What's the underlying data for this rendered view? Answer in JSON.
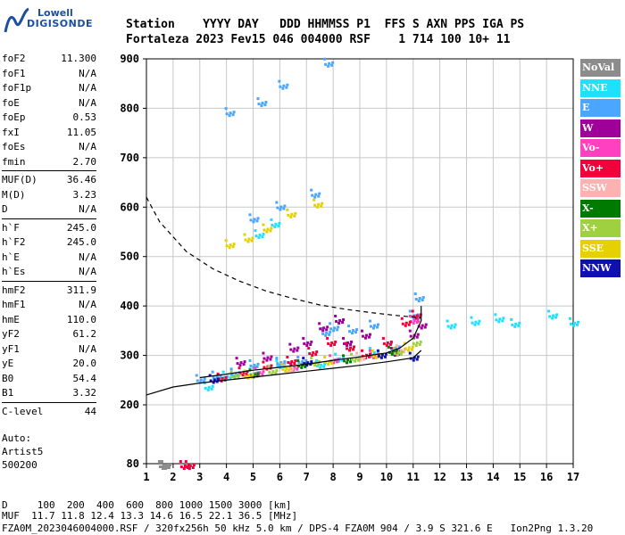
{
  "logo": {
    "line1": "Lowell",
    "line2": "DIGISONDE"
  },
  "header": {
    "row1": "Station    YYYY DAY   DDD HHMMSS P1  FFS S AXN PPS IGA PS",
    "row2": "Fortaleza 2023 Fev15 046 004000 RSF    1 714 100 10+ 11"
  },
  "params": [
    {
      "k": "foF2",
      "v": "11.300"
    },
    {
      "k": "foF1",
      "v": "N/A"
    },
    {
      "k": "foF1p",
      "v": "N/A"
    },
    {
      "k": "foE",
      "v": "N/A"
    },
    {
      "k": "foEp",
      "v": "0.53"
    },
    {
      "k": "fxI",
      "v": "11.05"
    },
    {
      "k": "foEs",
      "v": "N/A"
    },
    {
      "k": "fmin",
      "v": "2.70"
    },
    {
      "sep": true
    },
    {
      "k": "MUF(D)",
      "v": "36.46"
    },
    {
      "k": "M(D)",
      "v": "3.23"
    },
    {
      "k": "D",
      "v": "N/A"
    },
    {
      "sep": true
    },
    {
      "k": "h`F",
      "v": "245.0"
    },
    {
      "k": "h`F2",
      "v": "245.0"
    },
    {
      "k": "h`E",
      "v": "N/A"
    },
    {
      "k": "h`Es",
      "v": "N/A"
    },
    {
      "sep": true
    },
    {
      "k": "hmF2",
      "v": "311.9"
    },
    {
      "k": "hmF1",
      "v": "N/A"
    },
    {
      "k": "hmE",
      "v": "110.0"
    },
    {
      "k": "yF2",
      "v": "61.2"
    },
    {
      "k": "yF1",
      "v": "N/A"
    },
    {
      "k": "yE",
      "v": "20.0"
    },
    {
      "k": "B0",
      "v": "54.4"
    },
    {
      "k": "B1",
      "v": "3.32"
    },
    {
      "sep": true
    },
    {
      "k": "C-level",
      "v": "44"
    }
  ],
  "auto": {
    "l1": "Auto:",
    "l2": "Artist5",
    "l3": "500200"
  },
  "legend": [
    {
      "label": "NoVal",
      "color": "#8c8c8c"
    },
    {
      "label": "NNE",
      "color": "#1ee0ff"
    },
    {
      "label": "E",
      "color": "#4aa6ff"
    },
    {
      "label": "W",
      "color": "#a0009a"
    },
    {
      "label": "Vo-",
      "color": "#ff40c0"
    },
    {
      "label": "Vo+",
      "color": "#f2003c"
    },
    {
      "label": "SSW",
      "color": "#ffb0b0"
    },
    {
      "label": "X-",
      "color": "#007a00"
    },
    {
      "label": "X+",
      "color": "#9ed040"
    },
    {
      "label": "SSE",
      "color": "#e6d000"
    },
    {
      "label": "NNW",
      "color": "#1010b0"
    }
  ],
  "footer": {
    "row1": "D     100  200  400  600  800 1000 1500 3000 [km]",
    "row2": "MUF  11.7 11.8 12.4 13.3 14.6 16.5 22.1 36.5 [MHz]",
    "row3": "FZA0M_2023046004000.RSF / 320fx256h 50 kHz 5.0 km / DPS-4 FZA0M 904 / 3.9 S 321.6 E   Ion2Png 1.3.20"
  },
  "chart_data": {
    "type": "scatter",
    "xlabel": "",
    "ylabel": "",
    "xlim": [
      1,
      17
    ],
    "ylim": [
      80,
      900
    ],
    "xticks": [
      1,
      2,
      3,
      4,
      5,
      6,
      7,
      8,
      9,
      10,
      11,
      12,
      13,
      14,
      15,
      16,
      17
    ],
    "yticks": [
      80,
      200,
      300,
      400,
      500,
      600,
      700,
      800,
      900
    ],
    "grid": true,
    "series": [
      {
        "name": "NNE",
        "points": [
          [
            3.3,
            240
          ],
          [
            4,
            262
          ],
          [
            5,
            268
          ],
          [
            6,
            285
          ],
          [
            7.5,
            285
          ],
          [
            8.2,
            298
          ],
          [
            9.5,
            310
          ],
          [
            12.4,
            365
          ],
          [
            13.3,
            372
          ],
          [
            14.2,
            378
          ],
          [
            14.8,
            368
          ],
          [
            16.2,
            385
          ],
          [
            17,
            370
          ],
          [
            5.2,
            548
          ],
          [
            5.8,
            570
          ]
        ]
      },
      {
        "name": "E",
        "points": [
          [
            3,
            255
          ],
          [
            3.6,
            262
          ],
          [
            4.3,
            268
          ],
          [
            5,
            285
          ],
          [
            6,
            290
          ],
          [
            6.8,
            292
          ],
          [
            7.7,
            350
          ],
          [
            8,
            360
          ],
          [
            8.7,
            355
          ],
          [
            9.5,
            365
          ],
          [
            10.3,
            320
          ],
          [
            11,
            385
          ],
          [
            11.2,
            420
          ],
          [
            4.1,
            795
          ],
          [
            5.3,
            815
          ],
          [
            6.1,
            850
          ],
          [
            7.8,
            895
          ],
          [
            5,
            580
          ],
          [
            6,
            605
          ],
          [
            7.3,
            630
          ]
        ]
      },
      {
        "name": "W",
        "points": [
          [
            4.5,
            290
          ],
          [
            5.5,
            300
          ],
          [
            6.5,
            318
          ],
          [
            7,
            330
          ],
          [
            7.6,
            360
          ],
          [
            8.2,
            375
          ],
          [
            8.5,
            330
          ],
          [
            9.2,
            345
          ],
          [
            10.3,
            310
          ],
          [
            11,
            345
          ],
          [
            11.3,
            365
          ]
        ]
      },
      {
        "name": "Vo-",
        "points": [
          [
            5.2,
            270
          ],
          [
            6.5,
            280
          ],
          [
            8,
            295
          ],
          [
            9.5,
            305
          ],
          [
            11,
            375
          ]
        ]
      },
      {
        "name": "Vo+",
        "points": [
          [
            3.8,
            258
          ],
          [
            4.6,
            270
          ],
          [
            5.5,
            282
          ],
          [
            6.4,
            292
          ],
          [
            7.2,
            310
          ],
          [
            7.9,
            330
          ],
          [
            8.6,
            320
          ],
          [
            9.2,
            305
          ],
          [
            10,
            330
          ],
          [
            10.7,
            370
          ],
          [
            11.1,
            385
          ],
          [
            2.6,
            80
          ],
          [
            2.4,
            80
          ]
        ]
      },
      {
        "name": "SSW",
        "points": [
          [
            6.3,
            275
          ],
          [
            9,
            300
          ],
          [
            10.5,
            315
          ]
        ]
      },
      {
        "name": "X-",
        "points": [
          [
            5,
            266
          ],
          [
            6.8,
            285
          ],
          [
            8.5,
            295
          ],
          [
            10.2,
            312
          ]
        ]
      },
      {
        "name": "X+",
        "points": [
          [
            4.3,
            263
          ],
          [
            5.7,
            272
          ],
          [
            7.3,
            290
          ],
          [
            8.8,
            298
          ],
          [
            10.4,
            310
          ],
          [
            11.1,
            330
          ]
        ]
      },
      {
        "name": "SSE",
        "points": [
          [
            4.8,
            264
          ],
          [
            6.2,
            278
          ],
          [
            7.8,
            292
          ],
          [
            9.6,
            305
          ],
          [
            10.8,
            320
          ],
          [
            4.1,
            528
          ],
          [
            4.8,
            540
          ],
          [
            5.5,
            560
          ],
          [
            6.4,
            590
          ],
          [
            7.4,
            610
          ]
        ]
      },
      {
        "name": "NNW",
        "points": [
          [
            3.5,
            255
          ],
          [
            7,
            290
          ],
          [
            9.8,
            305
          ],
          [
            11,
            300
          ]
        ]
      },
      {
        "name": "NoVal",
        "points": [
          [
            1.6,
            80
          ],
          [
            1.7,
            80
          ]
        ]
      }
    ],
    "curves": [
      {
        "name": "virtual-height trace",
        "style": "solid",
        "points": [
          [
            3,
            255
          ],
          [
            4,
            262
          ],
          [
            5,
            270
          ],
          [
            6,
            276
          ],
          [
            7,
            282
          ],
          [
            8,
            290
          ],
          [
            9,
            297
          ],
          [
            10,
            305
          ],
          [
            10.5,
            315
          ],
          [
            11,
            335
          ],
          [
            11.3,
            370
          ],
          [
            11.3,
            400
          ]
        ]
      },
      {
        "name": "profile",
        "style": "solid",
        "points": [
          [
            1,
            220
          ],
          [
            2,
            236
          ],
          [
            3,
            244
          ],
          [
            4,
            250
          ],
          [
            5,
            256
          ],
          [
            6,
            262
          ],
          [
            7,
            268
          ],
          [
            8,
            274
          ],
          [
            9,
            280
          ],
          [
            10,
            287
          ],
          [
            11,
            295
          ],
          [
            11.3,
            310
          ]
        ]
      },
      {
        "name": "MUF(D)",
        "style": "dashed",
        "points": [
          [
            1,
            620
          ],
          [
            1.5,
            570
          ],
          [
            2.5,
            510
          ],
          [
            3.5,
            475
          ],
          [
            4.5,
            450
          ],
          [
            5.5,
            430
          ],
          [
            6.5,
            415
          ],
          [
            7.5,
            402
          ],
          [
            8.5,
            393
          ],
          [
            9.5,
            386
          ],
          [
            10.5,
            380
          ],
          [
            11.3,
            376
          ]
        ]
      }
    ]
  }
}
